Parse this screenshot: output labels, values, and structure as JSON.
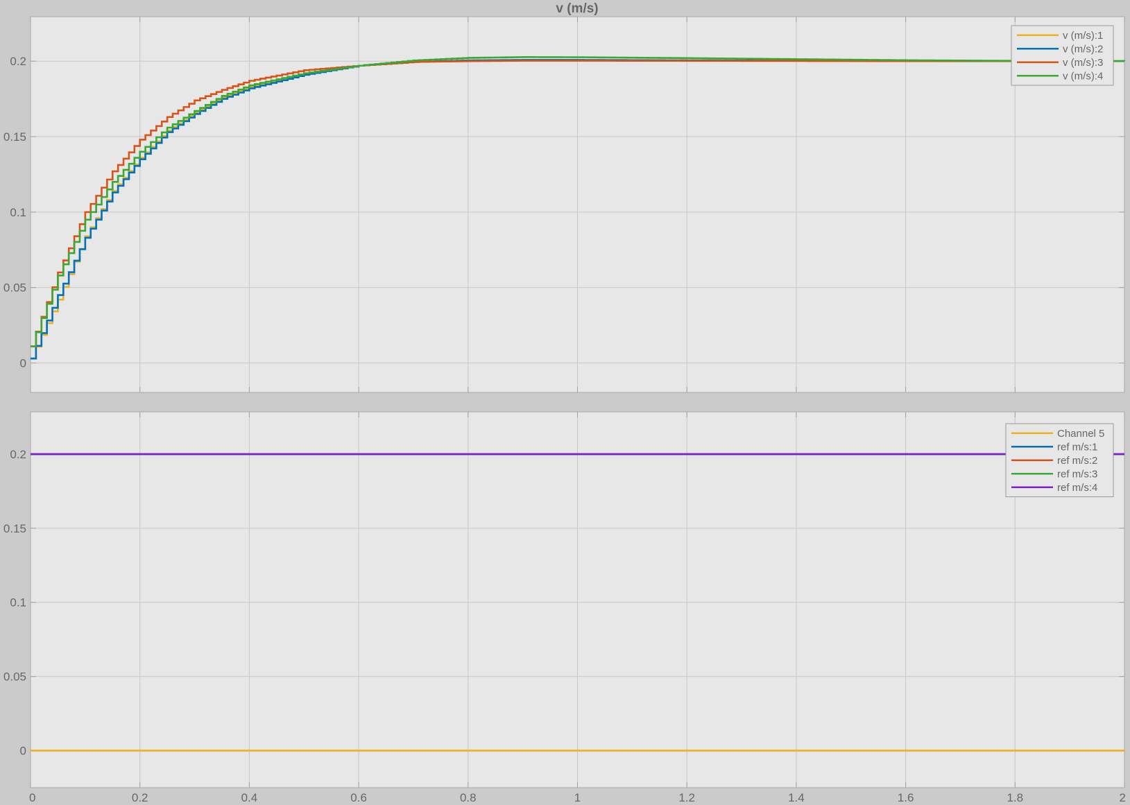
{
  "chart_data": [
    {
      "type": "line",
      "title": "v (m/s)",
      "xlabel": "",
      "ylabel": "",
      "xlim": [
        0,
        2
      ],
      "ylim": [
        -0.0195,
        0.2295
      ],
      "grid": true,
      "legend_position": "top-right",
      "x_ticks": [
        0,
        0.2,
        0.4,
        0.6,
        0.8,
        1,
        1.2,
        1.4,
        1.6,
        1.8,
        2
      ],
      "y_ticks": [
        0,
        0.05,
        0.1,
        0.15,
        0.2
      ],
      "y_tick_labels": [
        "0",
        "0.05",
        "0.1",
        "0.15",
        "0.2"
      ],
      "sample_time": 0.01,
      "series": [
        {
          "name": "v (m/s):1",
          "color": "#EDB120",
          "x": [
            0,
            0.05,
            0.1,
            0.15,
            0.2,
            0.25,
            0.3,
            0.35,
            0.4,
            0.5,
            0.6,
            0.7,
            0.8,
            0.9,
            1.0,
            1.2,
            1.4,
            1.6,
            1.8,
            2.0
          ],
          "y": [
            0.003,
            0.042,
            0.084,
            0.114,
            0.136,
            0.154,
            0.166,
            0.176,
            0.183,
            0.192,
            0.197,
            0.1995,
            0.2005,
            0.2008,
            0.2008,
            0.2005,
            0.2003,
            0.2001,
            0.2,
            0.2
          ]
        },
        {
          "name": "v (m/s):2",
          "color": "#0072BD",
          "x": [
            0,
            0.05,
            0.1,
            0.15,
            0.2,
            0.25,
            0.3,
            0.35,
            0.4,
            0.5,
            0.6,
            0.7,
            0.8,
            0.9,
            1.0,
            1.2,
            1.4,
            1.6,
            1.8,
            2.0
          ],
          "y": [
            0.003,
            0.045,
            0.083,
            0.113,
            0.135,
            0.153,
            0.165,
            0.175,
            0.182,
            0.191,
            0.197,
            0.1995,
            0.2005,
            0.2008,
            0.2008,
            0.2005,
            0.2003,
            0.2001,
            0.2,
            0.2
          ]
        },
        {
          "name": "v (m/s):3",
          "color": "#D95319",
          "x": [
            0,
            0.05,
            0.1,
            0.15,
            0.2,
            0.25,
            0.3,
            0.35,
            0.4,
            0.5,
            0.6,
            0.7,
            0.8,
            0.9,
            1.0,
            1.2,
            1.4,
            1.6,
            1.8,
            2.0
          ],
          "y": [
            0.011,
            0.06,
            0.1,
            0.127,
            0.148,
            0.163,
            0.174,
            0.181,
            0.187,
            0.194,
            0.197,
            0.1995,
            0.2,
            0.2003,
            0.2003,
            0.2002,
            0.2001,
            0.2,
            0.2,
            0.2
          ]
        },
        {
          "name": "v (m/s):4",
          "color": "#3BA835",
          "x": [
            0,
            0.05,
            0.1,
            0.15,
            0.2,
            0.25,
            0.3,
            0.35,
            0.4,
            0.5,
            0.6,
            0.7,
            0.8,
            0.9,
            1.0,
            1.2,
            1.4,
            1.6,
            1.8,
            2.0
          ],
          "y": [
            0.011,
            0.058,
            0.095,
            0.12,
            0.14,
            0.156,
            0.167,
            0.177,
            0.184,
            0.192,
            0.197,
            0.2005,
            0.2022,
            0.2027,
            0.2026,
            0.202,
            0.2013,
            0.2006,
            0.2002,
            0.2
          ]
        }
      ]
    },
    {
      "type": "line",
      "title": "",
      "xlabel": "",
      "ylabel": "",
      "xlim": [
        0,
        2
      ],
      "ylim": [
        -0.025,
        0.2285
      ],
      "grid": true,
      "legend_position": "top-right",
      "x_ticks": [
        0,
        0.2,
        0.4,
        0.6,
        0.8,
        1,
        1.2,
        1.4,
        1.6,
        1.8,
        2
      ],
      "x_tick_labels": [
        "0",
        "0.2",
        "0.4",
        "0.6",
        "0.8",
        "1",
        "1.2",
        "1.4",
        "1.6",
        "1.8",
        "2"
      ],
      "y_ticks": [
        0,
        0.05,
        0.1,
        0.15,
        0.2
      ],
      "y_tick_labels": [
        "0",
        "0.05",
        "0.1",
        "0.15",
        "0.2"
      ],
      "series": [
        {
          "name": "Channel 5",
          "color": "#EDB120",
          "x": [
            0,
            2
          ],
          "y": [
            0,
            0
          ]
        },
        {
          "name": "ref m/s:1",
          "color": "#0072BD",
          "x": [
            0,
            2
          ],
          "y": [
            0.2,
            0.2
          ]
        },
        {
          "name": "ref m/s:2",
          "color": "#D95319",
          "x": [
            0,
            2
          ],
          "y": [
            0.2,
            0.2
          ]
        },
        {
          "name": "ref m/s:3",
          "color": "#3BA835",
          "x": [
            0,
            2
          ],
          "y": [
            0.2,
            0.2
          ]
        },
        {
          "name": "ref m/s:4",
          "color": "#7E1FD1",
          "x": [
            0,
            2
          ],
          "y": [
            0.2,
            0.2
          ]
        }
      ]
    }
  ]
}
